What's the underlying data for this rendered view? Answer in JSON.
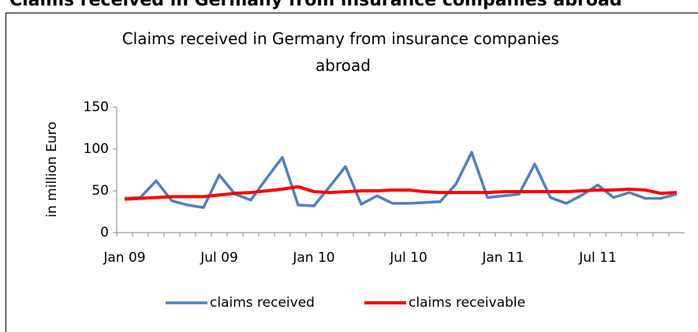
{
  "page_title": "Claims received in Germany from insurance companies abroad",
  "chart_data": {
    "type": "line",
    "title": "Claims received in Germany from insurance companies abroad",
    "ylabel": "in million Euro",
    "categories": [
      "Jan 09",
      null,
      null,
      null,
      null,
      null,
      "Jul 09",
      null,
      null,
      null,
      null,
      null,
      "Jan 10",
      null,
      null,
      null,
      null,
      null,
      "Jul 10",
      null,
      null,
      null,
      null,
      null,
      "Jan 11",
      null,
      null,
      null,
      null,
      null,
      "Jul 11",
      null,
      null,
      null,
      null,
      null
    ],
    "series": [
      {
        "name": "claims received",
        "color": "#4f81bd",
        "values": [
          41,
          42,
          62,
          38,
          33,
          30,
          69,
          46,
          39,
          65,
          90,
          33,
          32,
          55,
          79,
          34,
          44,
          35,
          35,
          36,
          37,
          58,
          96,
          42,
          44,
          46,
          82,
          42,
          35,
          45,
          57,
          42,
          48,
          41,
          41,
          46
        ]
      },
      {
        "name": "claims receivable",
        "color": "#ff0000",
        "values": [
          40,
          41,
          42,
          43,
          43,
          43,
          45,
          47,
          48,
          50,
          52,
          55,
          49,
          48,
          49,
          50,
          50,
          51,
          51,
          49,
          48,
          48,
          48,
          48,
          49,
          49,
          49,
          49,
          49,
          50,
          51,
          51,
          52,
          51,
          47,
          48
        ]
      }
    ],
    "ylim": [
      0,
      150
    ],
    "yticks": [
      0,
      50,
      100,
      150
    ],
    "grid": false,
    "legend": "bottom"
  }
}
